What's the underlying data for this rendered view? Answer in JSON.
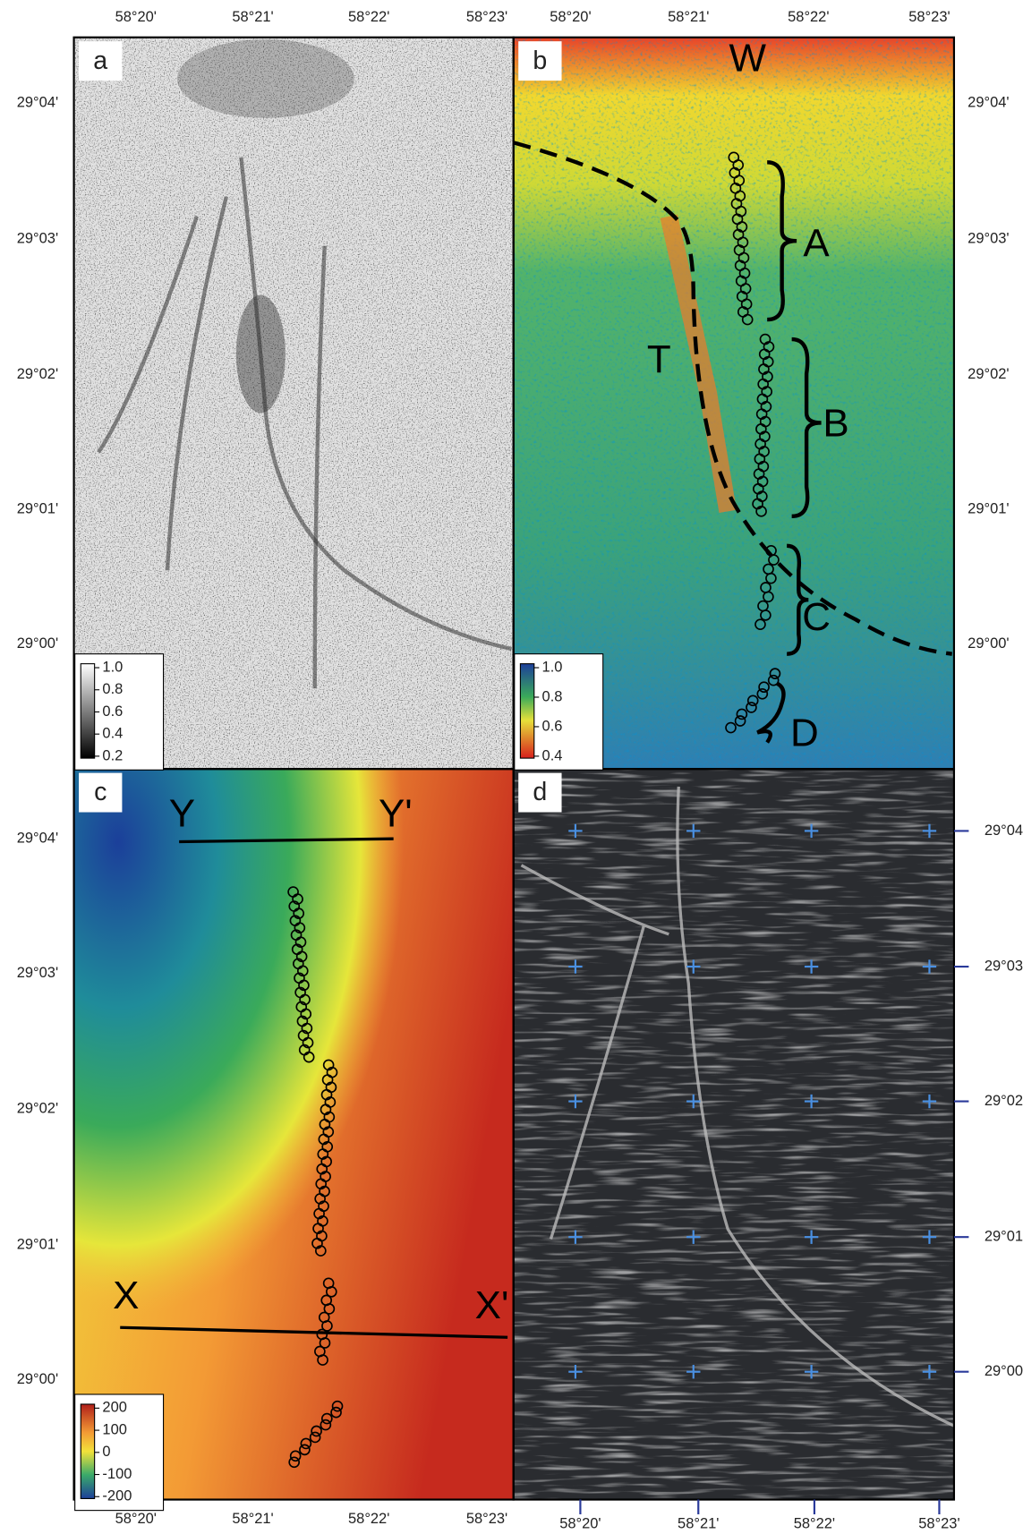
{
  "longitude_labels": [
    "58°20'",
    "58°21'",
    "58°22'",
    "58°23'"
  ],
  "latitude_labels": [
    "29°04'",
    "29°03'",
    "29°02'",
    "29°01'",
    "29°00'"
  ],
  "panels": [
    {
      "label": "a",
      "colorbar_labels": [
        "1.0",
        "0.8",
        "0.6",
        "0.4",
        "0.2"
      ]
    },
    {
      "label": "b",
      "colorbar_labels": [
        "1.0",
        "0.8",
        "0.6",
        "0.4"
      ],
      "annotations": [
        "W",
        "A",
        "T",
        "B",
        "C",
        "D"
      ]
    },
    {
      "label": "c",
      "colorbar_labels": [
        "200",
        "100",
        "0",
        "-100",
        "-200"
      ],
      "annotations": [
        "Y",
        "Y'",
        "X",
        "X'"
      ]
    },
    {
      "label": "d"
    }
  ]
}
